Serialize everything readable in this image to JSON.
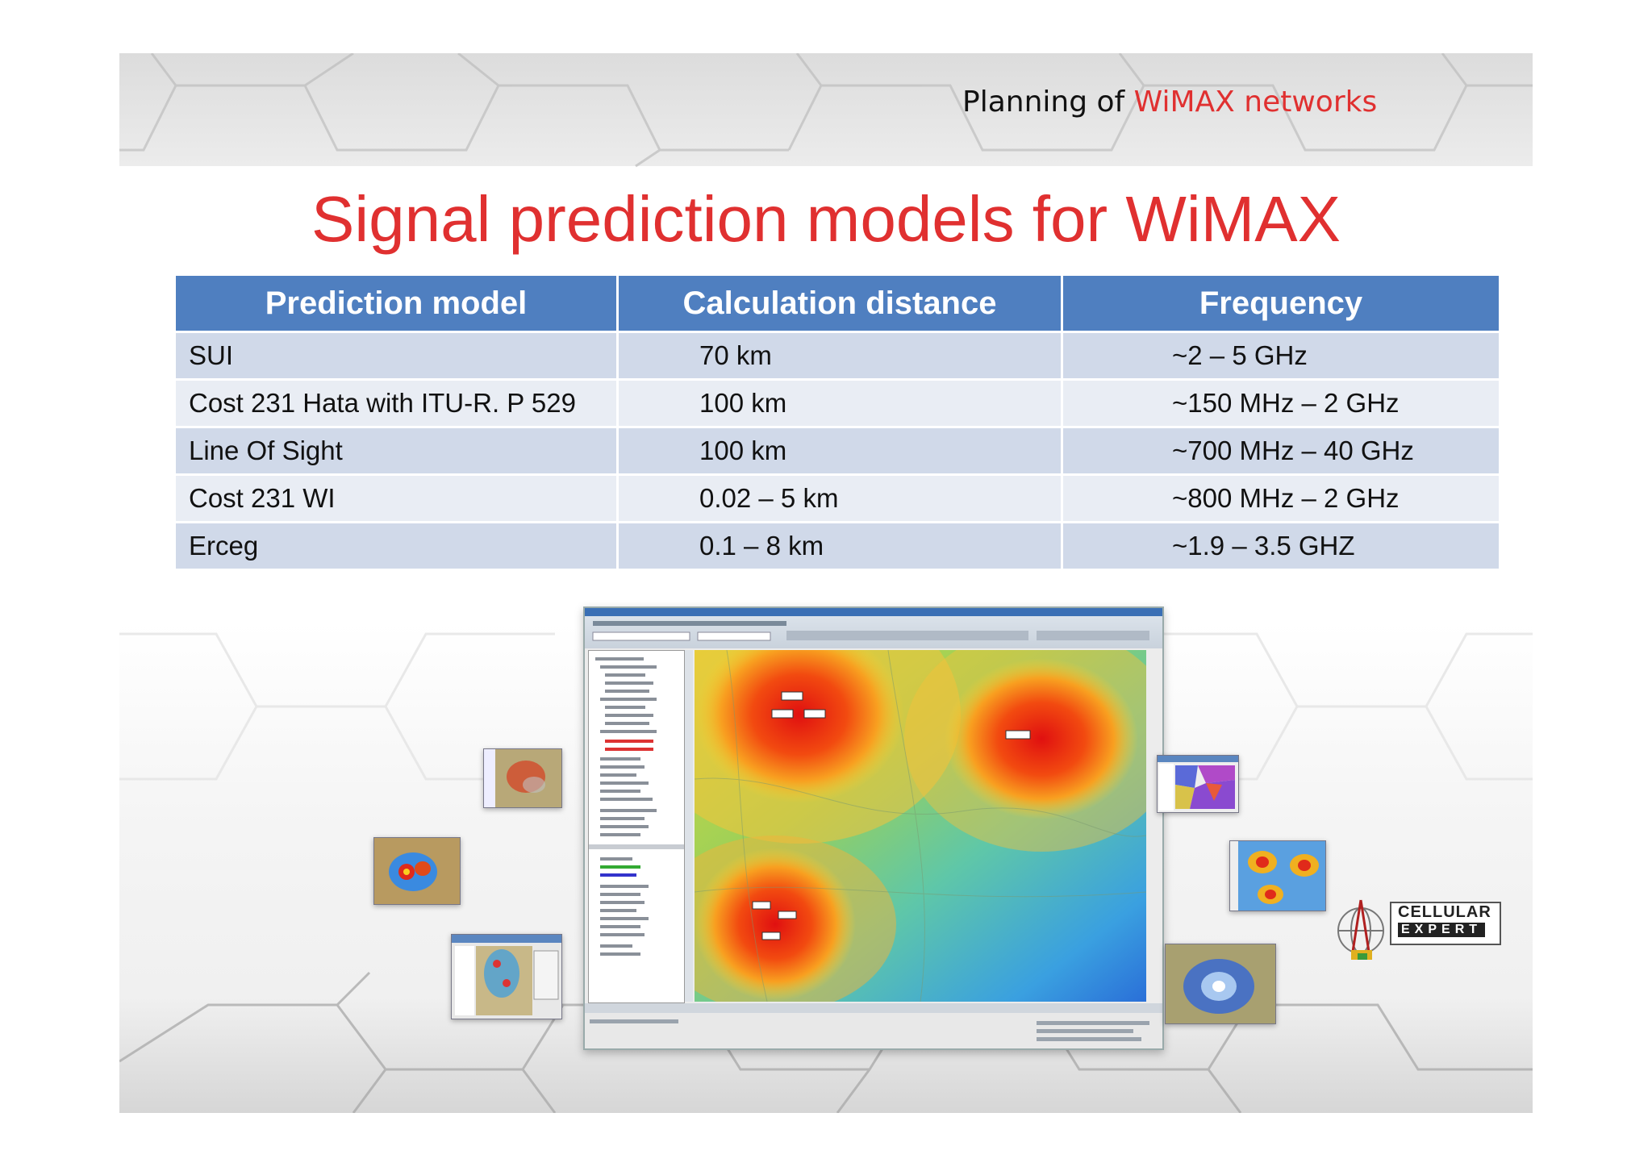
{
  "header": {
    "prefix": "Planning of",
    "accent": "WiMAX networks"
  },
  "title": "Signal prediction models for WiMAX",
  "table": {
    "headers": [
      "Prediction model",
      "Calculation distance",
      "Frequency"
    ],
    "rows": [
      [
        "SUI",
        "70 km",
        "~2 – 5 GHz"
      ],
      [
        "Cost 231 Hata with ITU-R. P 529",
        "100 km",
        "~150 MHz – 2 GHz"
      ],
      [
        "Line Of Sight",
        "100 km",
        "~700 MHz – 40 GHz"
      ],
      [
        "Cost 231 WI",
        "0.02 – 5 km",
        "~800 MHz – 2 GHz"
      ],
      [
        "Erceg",
        "0.1 – 8 km",
        "~1.9 – 3.5 GHZ"
      ]
    ]
  },
  "logo": {
    "line1": "CELLULAR",
    "line2": "EXPERT"
  },
  "colors": {
    "accent_red": "#e03030",
    "header_blue": "#4f7fc0",
    "side_green": "#20a53a"
  }
}
